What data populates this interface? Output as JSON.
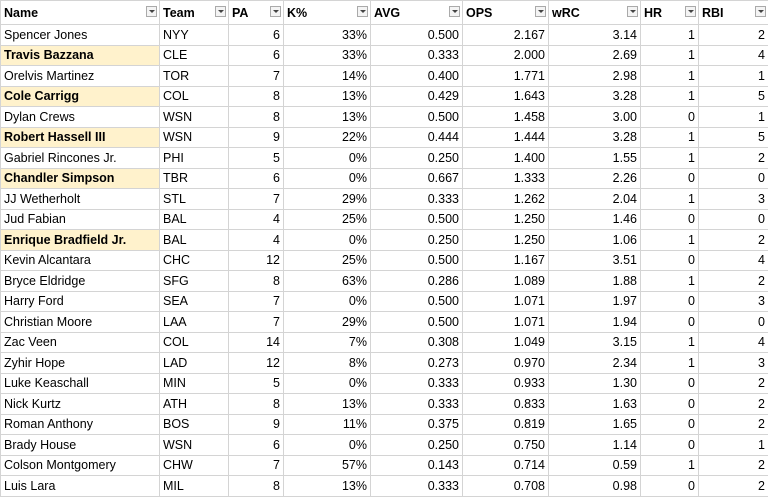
{
  "table": {
    "headers": [
      "Name",
      "Team",
      "PA",
      "K%",
      "AVG",
      "OPS",
      "wRC",
      "HR",
      "RBI"
    ],
    "rows": [
      [
        "Spencer Jones",
        "NYY",
        "6",
        "33%",
        "0.500",
        "2.167",
        "3.14",
        "1",
        "2"
      ],
      [
        "Travis Bazzana",
        "CLE",
        "6",
        "33%",
        "0.333",
        "2.000",
        "2.69",
        "1",
        "4"
      ],
      [
        "Orelvis Martinez",
        "TOR",
        "7",
        "14%",
        "0.400",
        "1.771",
        "2.98",
        "1",
        "1"
      ],
      [
        "Cole Carrigg",
        "COL",
        "8",
        "13%",
        "0.429",
        "1.643",
        "3.28",
        "1",
        "5"
      ],
      [
        "Dylan Crews",
        "WSN",
        "8",
        "13%",
        "0.500",
        "1.458",
        "3.00",
        "0",
        "1"
      ],
      [
        "Robert Hassell III",
        "WSN",
        "9",
        "22%",
        "0.444",
        "1.444",
        "3.28",
        "1",
        "5"
      ],
      [
        "Gabriel Rincones Jr.",
        "PHI",
        "5",
        "0%",
        "0.250",
        "1.400",
        "1.55",
        "1",
        "2"
      ],
      [
        "Chandler Simpson",
        "TBR",
        "6",
        "0%",
        "0.667",
        "1.333",
        "2.26",
        "0",
        "0"
      ],
      [
        "JJ Wetherholt",
        "STL",
        "7",
        "29%",
        "0.333",
        "1.262",
        "2.04",
        "1",
        "3"
      ],
      [
        "Jud Fabian",
        "BAL",
        "4",
        "25%",
        "0.500",
        "1.250",
        "1.46",
        "0",
        "0"
      ],
      [
        "Enrique Bradfield Jr.",
        "BAL",
        "4",
        "0%",
        "0.250",
        "1.250",
        "1.06",
        "1",
        "2"
      ],
      [
        "Kevin Alcantara",
        "CHC",
        "12",
        "25%",
        "0.500",
        "1.167",
        "3.51",
        "0",
        "4"
      ],
      [
        "Bryce Eldridge",
        "SFG",
        "8",
        "63%",
        "0.286",
        "1.089",
        "1.88",
        "1",
        "2"
      ],
      [
        "Harry Ford",
        "SEA",
        "7",
        "0%",
        "0.500",
        "1.071",
        "1.97",
        "0",
        "3"
      ],
      [
        "Christian Moore",
        "LAA",
        "7",
        "29%",
        "0.500",
        "1.071",
        "1.94",
        "0",
        "0"
      ],
      [
        "Zac Veen",
        "COL",
        "14",
        "7%",
        "0.308",
        "1.049",
        "3.15",
        "1",
        "4"
      ],
      [
        "Zyhir Hope",
        "LAD",
        "12",
        "8%",
        "0.273",
        "0.970",
        "2.34",
        "1",
        "3"
      ],
      [
        "Luke Keaschall",
        "MIN",
        "5",
        "0%",
        "0.333",
        "0.933",
        "1.30",
        "0",
        "2"
      ],
      [
        "Nick Kurtz",
        "ATH",
        "8",
        "13%",
        "0.333",
        "0.833",
        "1.63",
        "0",
        "2"
      ],
      [
        "Roman Anthony",
        "BOS",
        "9",
        "11%",
        "0.375",
        "0.819",
        "1.65",
        "0",
        "2"
      ],
      [
        "Brady House",
        "WSN",
        "6",
        "0%",
        "0.250",
        "0.750",
        "1.14",
        "0",
        "1"
      ],
      [
        "Colson Montgomery",
        "CHW",
        "7",
        "57%",
        "0.143",
        "0.714",
        "0.59",
        "1",
        "2"
      ],
      [
        "Luis Lara",
        "MIL",
        "8",
        "13%",
        "0.333",
        "0.708",
        "0.98",
        "0",
        "2"
      ]
    ],
    "highlighted_rows": [
      1,
      3,
      5,
      7,
      10
    ],
    "highlight_color": "#fff2cc"
  }
}
